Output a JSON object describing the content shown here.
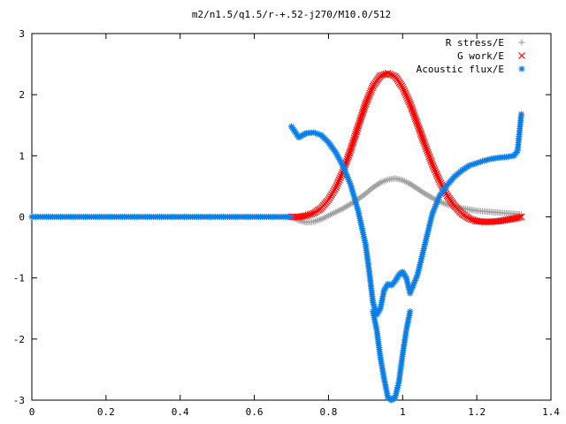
{
  "chart_data": {
    "type": "scatter",
    "title": "m2/n1.5/q1.5/r-+.52-j270/M10.0/512",
    "xlabel": "",
    "ylabel": "",
    "xlim": [
      0,
      1.4
    ],
    "ylim": [
      -3,
      3
    ],
    "x_ticks": [
      "0",
      "0.2",
      "0.4",
      "0.6",
      "0.8",
      "1",
      "1.2",
      "1.4"
    ],
    "y_ticks": [
      "-3",
      "-2",
      "-1",
      "0",
      "1",
      "2",
      "3"
    ],
    "grid": false,
    "legend_position": "top-right",
    "series": [
      {
        "name": "R stress/E",
        "marker": "plus",
        "color": "#a0a0a0",
        "x": [
          0.7,
          0.72,
          0.74,
          0.76,
          0.78,
          0.8,
          0.82,
          0.84,
          0.86,
          0.88,
          0.9,
          0.92,
          0.94,
          0.96,
          0.98,
          1.0,
          1.02,
          1.04,
          1.06,
          1.08,
          1.1,
          1.12,
          1.14,
          1.16,
          1.18,
          1.2,
          1.22,
          1.24,
          1.26,
          1.28,
          1.3,
          1.32
        ],
        "y": [
          0.0,
          -0.06,
          -0.09,
          -0.08,
          -0.04,
          0.02,
          0.08,
          0.14,
          0.21,
          0.29,
          0.38,
          0.48,
          0.56,
          0.61,
          0.63,
          0.6,
          0.54,
          0.46,
          0.38,
          0.31,
          0.25,
          0.2,
          0.17,
          0.14,
          0.12,
          0.1,
          0.09,
          0.08,
          0.07,
          0.06,
          0.05,
          0.04
        ]
      },
      {
        "name": "G work/E",
        "marker": "cross",
        "color": "#ff0000",
        "x": [
          0.7,
          0.72,
          0.74,
          0.76,
          0.78,
          0.8,
          0.82,
          0.84,
          0.86,
          0.88,
          0.9,
          0.92,
          0.94,
          0.96,
          0.98,
          1.0,
          1.02,
          1.04,
          1.06,
          1.08,
          1.1,
          1.12,
          1.14,
          1.16,
          1.18,
          1.2,
          1.22,
          1.24,
          1.26,
          1.28,
          1.3,
          1.32
        ],
        "y": [
          0.0,
          0.0,
          0.02,
          0.06,
          0.14,
          0.28,
          0.48,
          0.76,
          1.1,
          1.48,
          1.85,
          2.14,
          2.31,
          2.35,
          2.3,
          2.12,
          1.85,
          1.52,
          1.18,
          0.86,
          0.58,
          0.35,
          0.18,
          0.05,
          -0.03,
          -0.07,
          -0.08,
          -0.08,
          -0.07,
          -0.05,
          -0.03,
          0.0
        ]
      },
      {
        "name": "Acoustic flux/E",
        "marker": "star",
        "color": "#0a7ee8",
        "x": [
          0.0,
          0.05,
          0.1,
          0.15,
          0.2,
          0.25,
          0.3,
          0.35,
          0.4,
          0.45,
          0.5,
          0.55,
          0.6,
          0.65,
          0.7,
          0.7,
          0.72,
          0.74,
          0.76,
          0.78,
          0.8,
          0.82,
          0.84,
          0.86,
          0.88,
          0.9,
          0.91,
          0.92,
          0.93,
          0.94,
          0.95,
          0.96,
          0.97,
          0.98,
          0.99,
          1.0,
          1.01,
          1.02,
          1.04,
          1.06,
          1.08,
          1.1,
          1.12,
          1.14,
          1.16,
          1.18,
          1.2,
          1.22,
          1.24,
          1.26,
          1.28,
          1.3,
          1.31,
          1.32
        ],
        "y": [
          0.0,
          0.0,
          0.0,
          0.0,
          0.0,
          0.0,
          0.0,
          0.0,
          0.0,
          0.0,
          0.0,
          0.0,
          0.0,
          0.0,
          0.0,
          1.48,
          1.3,
          1.37,
          1.38,
          1.34,
          1.22,
          1.05,
          0.82,
          0.52,
          0.1,
          -0.45,
          -0.9,
          -1.4,
          -1.6,
          -1.5,
          -1.2,
          -1.1,
          -1.12,
          -1.05,
          -0.95,
          -0.9,
          -1.0,
          -1.25,
          -0.95,
          -0.45,
          0.05,
          0.35,
          0.52,
          0.66,
          0.76,
          0.84,
          0.88,
          0.92,
          0.95,
          0.97,
          0.98,
          1.0,
          1.08,
          1.68
        ]
      },
      {
        "name": "",
        "marker": "star",
        "color": "#0a7ee8",
        "x": [
          0.92,
          0.93,
          0.94,
          0.95,
          0.96,
          0.97,
          0.98,
          0.99,
          1.0,
          1.01,
          1.02
        ],
        "y": [
          -1.55,
          -1.85,
          -2.3,
          -2.65,
          -2.95,
          -3.0,
          -2.95,
          -2.7,
          -2.25,
          -1.85,
          -1.55
        ]
      }
    ]
  }
}
